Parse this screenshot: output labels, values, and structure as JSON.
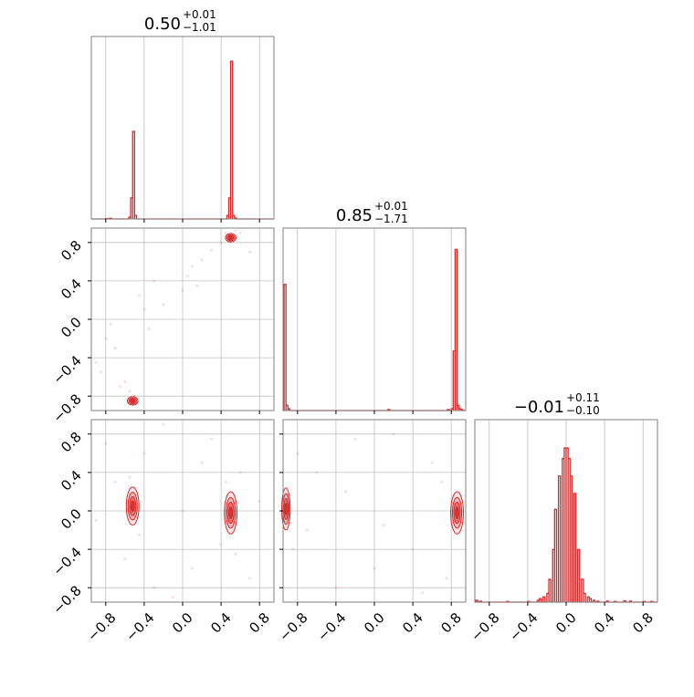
{
  "colors": {
    "accent": "#d62728",
    "grid": "#c0c0c0",
    "frame": "#808080"
  },
  "chart_data": {
    "type": "corner",
    "tick_labels": [
      "−0.8",
      "−0.4",
      "0.0",
      "0.4",
      "0.8"
    ],
    "tick_values": [
      -0.8,
      -0.4,
      0.0,
      0.4,
      0.8
    ],
    "xlim": [
      -0.95,
      0.95
    ],
    "grid": true,
    "titles": [
      {
        "main": "0.50",
        "sup": "+0.01",
        "sub": "−1.01"
      },
      {
        "main": "0.85",
        "sup": "+0.01",
        "sub": "−1.71"
      },
      {
        "main": "−0.01",
        "sup": "+0.11",
        "sub": "−0.10"
      }
    ],
    "histograms": [
      {
        "param": 0,
        "ylim": [
          0,
          1.0
        ],
        "bins": [
          {
            "x": -0.8,
            "v": 0.002
          },
          {
            "x": -0.76,
            "v": 0.004
          },
          {
            "x": -0.56,
            "v": 0.01
          },
          {
            "x": -0.54,
            "v": 0.12
          },
          {
            "x": -0.52,
            "v": 0.5
          },
          {
            "x": -0.5,
            "v": 0.02
          },
          {
            "x": 0.46,
            "v": 0.02
          },
          {
            "x": 0.48,
            "v": 0.12
          },
          {
            "x": 0.5,
            "v": 0.9
          },
          {
            "x": 0.52,
            "v": 0.02
          },
          {
            "x": 0.54,
            "v": 0.005
          }
        ]
      },
      {
        "param": 1,
        "ylim": [
          0,
          1.0
        ],
        "bins": [
          {
            "x": -0.94,
            "v": 0.72
          },
          {
            "x": -0.92,
            "v": 0.03
          },
          {
            "x": -0.9,
            "v": 0.01
          },
          {
            "x": 0.14,
            "v": 0.006
          },
          {
            "x": 0.76,
            "v": 0.006
          },
          {
            "x": 0.8,
            "v": 0.01
          },
          {
            "x": 0.82,
            "v": 0.34
          },
          {
            "x": 0.84,
            "v": 0.92
          },
          {
            "x": 0.86,
            "v": 0.03
          },
          {
            "x": 0.88,
            "v": 0.01
          },
          {
            "x": 0.9,
            "v": 0.006
          }
        ]
      },
      {
        "param": 2,
        "ylim": [
          0,
          1.0
        ],
        "bins": [
          {
            "x": -0.94,
            "v": 0.01
          },
          {
            "x": -0.9,
            "v": 0.005
          },
          {
            "x": -0.62,
            "v": 0.004
          },
          {
            "x": -0.4,
            "v": 0.004
          },
          {
            "x": -0.3,
            "v": 0.01
          },
          {
            "x": -0.28,
            "v": 0.02
          },
          {
            "x": -0.24,
            "v": 0.03
          },
          {
            "x": -0.2,
            "v": 0.05
          },
          {
            "x": -0.18,
            "v": 0.13
          },
          {
            "x": -0.14,
            "v": 0.3
          },
          {
            "x": -0.12,
            "v": 0.53
          },
          {
            "x": -0.08,
            "v": 0.72
          },
          {
            "x": -0.04,
            "v": 0.82
          },
          {
            "x": -0.02,
            "v": 0.88
          },
          {
            "x": 0.0,
            "v": 0.88
          },
          {
            "x": 0.02,
            "v": 0.82
          },
          {
            "x": 0.04,
            "v": 0.72
          },
          {
            "x": 0.08,
            "v": 0.62
          },
          {
            "x": 0.12,
            "v": 0.3
          },
          {
            "x": 0.16,
            "v": 0.13
          },
          {
            "x": 0.18,
            "v": 0.05
          },
          {
            "x": 0.22,
            "v": 0.03
          },
          {
            "x": 0.24,
            "v": 0.02
          },
          {
            "x": 0.28,
            "v": 0.01
          },
          {
            "x": 0.32,
            "v": 0.005
          },
          {
            "x": 0.42,
            "v": 0.006
          },
          {
            "x": 0.5,
            "v": 0.004
          },
          {
            "x": 0.6,
            "v": 0.008
          },
          {
            "x": 0.66,
            "v": 0.006
          },
          {
            "x": 0.8,
            "v": 0.004
          },
          {
            "x": 0.88,
            "v": 0.004
          }
        ]
      }
    ],
    "densities": [
      {
        "row": 1,
        "col": 0,
        "blobs": [
          {
            "x": 0.5,
            "y": 0.85,
            "sx": 0.025,
            "sy": 0.02
          },
          {
            "x": -0.52,
            "y": -0.85,
            "sx": 0.025,
            "sy": 0.02
          }
        ],
        "scatter": [
          [
            -0.9,
            -0.45
          ],
          [
            -0.7,
            -0.3
          ],
          [
            -0.6,
            -0.65
          ],
          [
            -0.55,
            -0.75
          ],
          [
            -0.65,
            -0.7
          ],
          [
            -0.8,
            -0.2
          ],
          [
            -0.75,
            -0.05
          ],
          [
            -0.4,
            0.1
          ],
          [
            -0.2,
            0.15
          ],
          [
            0.0,
            0.3
          ],
          [
            0.05,
            0.45
          ],
          [
            0.1,
            0.55
          ],
          [
            0.2,
            0.62
          ],
          [
            0.3,
            0.72
          ],
          [
            0.4,
            0.8
          ],
          [
            0.6,
            0.9
          ],
          [
            -0.3,
            0.4
          ],
          [
            -0.45,
            0.25
          ],
          [
            0.45,
            0.9
          ],
          [
            -0.5,
            -0.8
          ],
          [
            0.7,
            0.7
          ],
          [
            -0.85,
            -0.55
          ],
          [
            -0.35,
            -0.1
          ],
          [
            0.15,
            0.35
          ],
          [
            0.55,
            0.92
          ]
        ]
      },
      {
        "row": 2,
        "col": 0,
        "blobs": [
          {
            "x": -0.52,
            "y": 0.05,
            "sx": 0.03,
            "sy": 0.09
          },
          {
            "x": 0.5,
            "y": -0.02,
            "sx": 0.03,
            "sy": 0.1
          }
        ],
        "scatter": [
          [
            -0.8,
            0.7
          ],
          [
            -0.7,
            0.3
          ],
          [
            -0.6,
            -0.5
          ],
          [
            -0.4,
            0.6
          ],
          [
            -0.3,
            -0.8
          ],
          [
            -0.2,
            0.9
          ],
          [
            0.1,
            -0.6
          ],
          [
            0.3,
            0.75
          ],
          [
            0.4,
            -0.35
          ],
          [
            0.6,
            0.4
          ],
          [
            0.7,
            -0.7
          ],
          [
            -0.55,
            0.35
          ],
          [
            0.55,
            -0.45
          ],
          [
            -0.45,
            -0.25
          ],
          [
            0.45,
            0.3
          ],
          [
            -0.9,
            -0.1
          ],
          [
            0.8,
            0.1
          ],
          [
            0.0,
            0.0
          ],
          [
            -0.1,
            -0.9
          ],
          [
            0.2,
            0.5
          ]
        ]
      },
      {
        "row": 2,
        "col": 1,
        "blobs": [
          {
            "x": -0.92,
            "y": 0.02,
            "sx": 0.02,
            "sy": 0.1
          },
          {
            "x": 0.86,
            "y": -0.02,
            "sx": 0.03,
            "sy": 0.1
          }
        ],
        "scatter": [
          [
            -0.8,
            0.6
          ],
          [
            -0.6,
            0.4
          ],
          [
            -0.4,
            -0.8
          ],
          [
            -0.2,
            0.75
          ],
          [
            0.0,
            -0.6
          ],
          [
            0.2,
            0.8
          ],
          [
            0.4,
            -0.4
          ],
          [
            0.6,
            0.5
          ],
          [
            0.75,
            -0.7
          ],
          [
            -0.85,
            -0.4
          ],
          [
            0.7,
            0.3
          ],
          [
            -0.7,
            -0.2
          ],
          [
            0.5,
            -0.85
          ],
          [
            -0.3,
            0.2
          ],
          [
            0.1,
            -0.15
          ]
        ]
      }
    ]
  }
}
